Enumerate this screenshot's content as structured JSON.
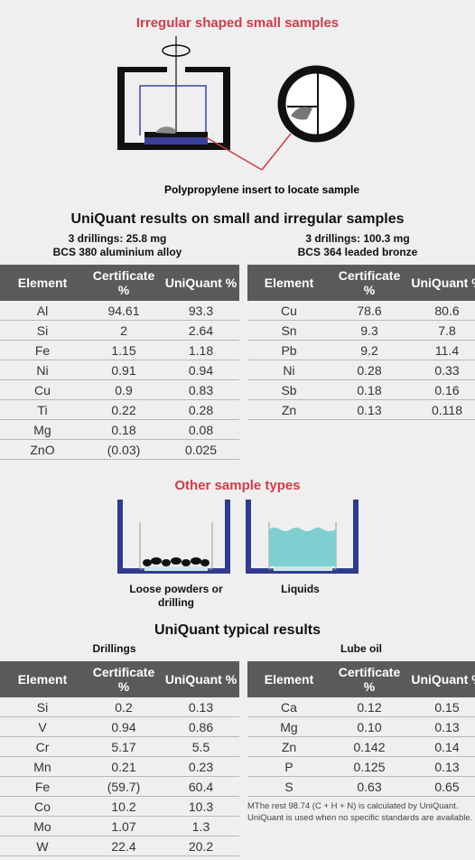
{
  "section1": {
    "title": "Irregular shaped small samples",
    "caption": "Polypropylene insert to locate sample"
  },
  "results1": {
    "title": "UniQuant results on small and irregular samples",
    "left": {
      "sample": "3 drillings: 25.8 mg",
      "material": "BCS 380 aluminium alloy",
      "table": {
        "header": [
          "Element",
          "Certificate %",
          "UniQuant %"
        ],
        "rows": [
          [
            "Al",
            "94.61",
            "93.3"
          ],
          [
            "Si",
            "2",
            "2.64"
          ],
          [
            "Fe",
            "1.15",
            "1.18"
          ],
          [
            "Ni",
            "0.91",
            "0.94"
          ],
          [
            "Cu",
            "0.9",
            "0.83"
          ],
          [
            "Ti",
            "0.22",
            "0.28"
          ],
          [
            "Mg",
            "0.18",
            "0.08"
          ],
          [
            "ZnO",
            "(0.03)",
            "0.025"
          ]
        ]
      }
    },
    "right": {
      "sample": "3 drillings: 100.3 mg",
      "material": "BCS 364 leaded bronze",
      "table": {
        "header": [
          "Element",
          "Certificate %",
          "UniQuant %"
        ],
        "rows": [
          [
            "Cu",
            "78.6",
            "80.6"
          ],
          [
            "Sn",
            "9.3",
            "7.8"
          ],
          [
            "Pb",
            "9.2",
            "11.4"
          ],
          [
            "Ni",
            "0.28",
            "0.33"
          ],
          [
            "Sb",
            "0.18",
            "0.16"
          ],
          [
            "Zn",
            "0.13",
            "0.118"
          ]
        ]
      }
    }
  },
  "section2": {
    "title": "Other sample types",
    "labels": [
      "Loose powders or drilling",
      "Liquids"
    ]
  },
  "results2": {
    "title": "UniQuant typical results",
    "left": {
      "label": "Drillings",
      "table": {
        "header": [
          "Element",
          "Certificate %",
          "UniQuant %"
        ],
        "rows": [
          [
            "Si",
            "0.2",
            "0.13"
          ],
          [
            "V",
            "0.94",
            "0.86"
          ],
          [
            "Cr",
            "5.17",
            "5.5"
          ],
          [
            "Mn",
            "0.21",
            "0.23"
          ],
          [
            "Fe",
            "(59.7)",
            "60.4"
          ],
          [
            "Co",
            "10.2",
            "10.3"
          ],
          [
            "Mo",
            "1.07",
            "1.3"
          ],
          [
            "W",
            "22.4",
            "20.2"
          ]
        ]
      }
    },
    "right": {
      "label": "Lube oil",
      "table": {
        "header": [
          "Element",
          "Certificate %",
          "UniQuant %"
        ],
        "rows": [
          [
            "Ca",
            "0.12",
            "0.15"
          ],
          [
            "Mg",
            "0.10",
            "0.13"
          ],
          [
            "Zn",
            "0.142",
            "0.14"
          ],
          [
            "P",
            "0.125",
            "0.13"
          ],
          [
            "S",
            "0.63",
            "0.65"
          ]
        ]
      }
    },
    "footnote": [
      "MThe rest 98.74 (C + H + N) is calculated by UniQuant.",
      "UniQuant is used when no specific standards are available."
    ]
  }
}
